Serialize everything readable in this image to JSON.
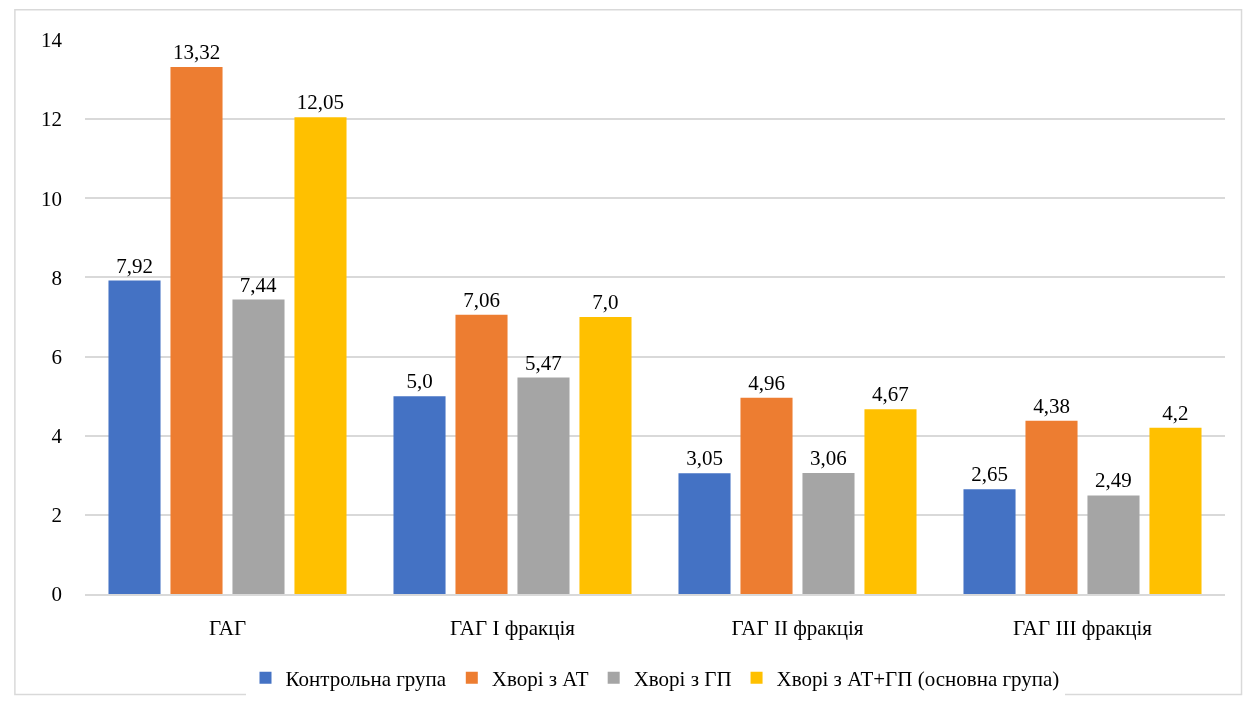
{
  "chart_data": {
    "type": "bar",
    "categories": [
      "ГАГ",
      "ГАГ I фракція",
      "ГАГ II фракція",
      "ГАГ III фракція"
    ],
    "series": [
      {
        "name": "Контрольна група",
        "color": "#4472c4",
        "values": [
          7.92,
          5.0,
          3.05,
          2.65
        ],
        "value_labels": [
          "7,92",
          "5,0",
          "3,05",
          "2,65"
        ]
      },
      {
        "name": "Хворі з АТ",
        "color": "#ed7d31",
        "values": [
          13.32,
          7.06,
          4.96,
          4.38
        ],
        "value_labels": [
          "13,32",
          "7,06",
          "4,96",
          "4,38"
        ]
      },
      {
        "name": "Хворі з ГП",
        "color": "#a5a5a5",
        "values": [
          7.44,
          5.47,
          3.06,
          2.49
        ],
        "value_labels": [
          "7,44",
          "5,47",
          "3,06",
          "2,49"
        ]
      },
      {
        "name": "Хворі з АТ+ГП (основна група)",
        "color": "#ffc000",
        "values": [
          12.05,
          7.0,
          4.67,
          4.2
        ],
        "value_labels": [
          "12,05",
          "7,0",
          "4,67",
          "4,2"
        ]
      }
    ],
    "ylim": [
      0,
      14
    ],
    "yticks": [
      0,
      2,
      4,
      6,
      8,
      10,
      12,
      14
    ],
    "grid": "y",
    "legend": "bottom"
  }
}
